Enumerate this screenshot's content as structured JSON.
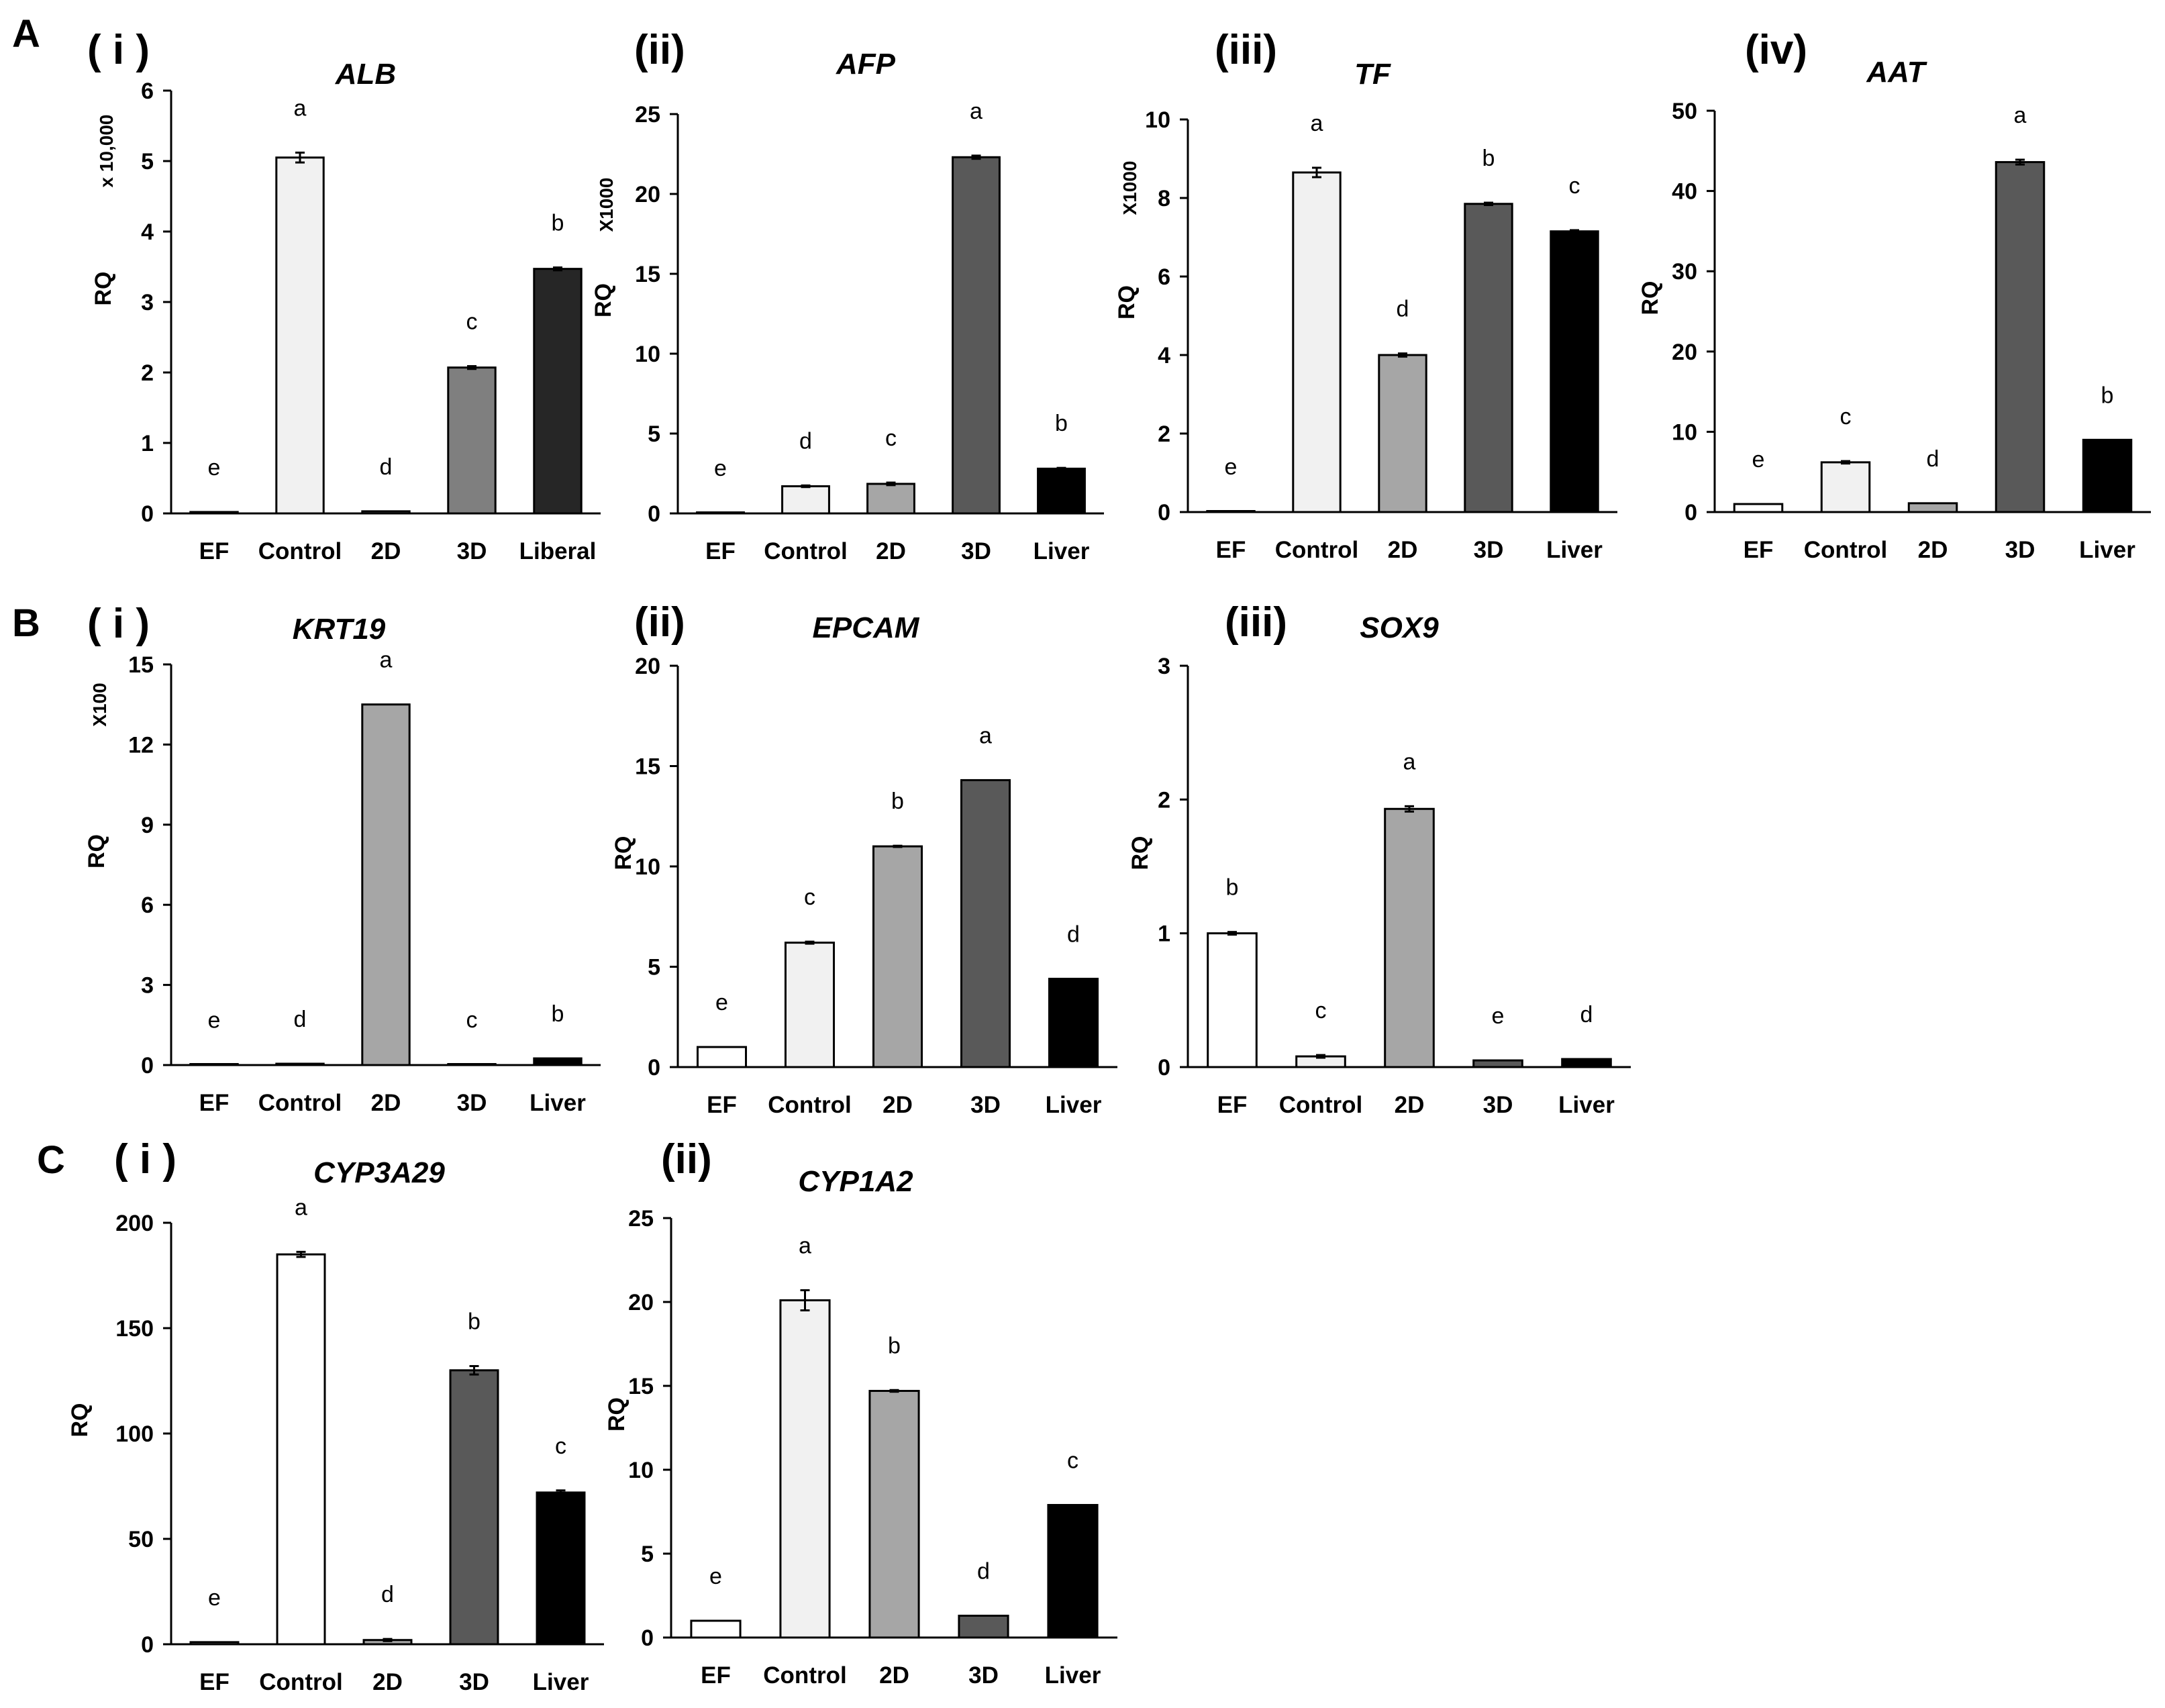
{
  "figure": {
    "panel_labels": [
      "A",
      "B",
      "C"
    ]
  },
  "chart_data": [
    {
      "type": "bar",
      "panel": "A",
      "roman": "( i )",
      "title": "ALB",
      "categories": [
        "EF",
        "Control",
        "2D",
        "3D",
        "Liberal"
      ],
      "values": [
        0.02,
        5.05,
        0.03,
        2.07,
        3.47
      ],
      "errors": [
        0,
        0.07,
        0,
        0.02,
        0.02
      ],
      "letters": [
        "e",
        "a",
        "d",
        "c",
        "b"
      ],
      "colors": [
        "#ffffff",
        "#f1f1f1",
        "#a6a6a6",
        "#7f7f7f",
        "#262626"
      ],
      "ylabel": "RQ",
      "multiplier": "x 10,000",
      "ylim": [
        0,
        6
      ],
      "yticks": [
        0,
        1,
        2,
        3,
        4,
        5,
        6
      ],
      "tick_labels": [
        "0",
        "1",
        "2",
        "3",
        "4",
        "5",
        "6"
      ]
    },
    {
      "type": "bar",
      "panel": "A",
      "roman": "(ii)",
      "title": "AFP",
      "categories": [
        "EF",
        "Control",
        "2D",
        "3D",
        "Liver"
      ],
      "values": [
        0.05,
        1.7,
        1.85,
        22.3,
        2.8
      ],
      "errors": [
        0,
        0.05,
        0.08,
        0.1,
        0.05
      ],
      "letters": [
        "e",
        "d",
        "c",
        "a",
        "b"
      ],
      "colors": [
        "#ffffff",
        "#f1f1f1",
        "#a6a6a6",
        "#595959",
        "#000000"
      ],
      "ylabel": "RQ",
      "multiplier": "X1000",
      "ylim": [
        0,
        25
      ],
      "yticks": [
        0,
        5,
        10,
        15,
        20,
        25
      ],
      "tick_labels": [
        "0",
        "5",
        "10",
        "15",
        "20",
        "25"
      ]
    },
    {
      "type": "bar",
      "panel": "A",
      "roman": "(iii)",
      "title": "TF",
      "categories": [
        "EF",
        "Control",
        "2D",
        "3D",
        "Liver"
      ],
      "values": [
        0.02,
        8.65,
        4.0,
        7.85,
        7.15
      ],
      "errors": [
        0,
        0.12,
        0.04,
        0.03,
        0.03
      ],
      "letters": [
        "e",
        "a",
        "d",
        "b",
        "c"
      ],
      "colors": [
        "#ffffff",
        "#f1f1f1",
        "#a6a6a6",
        "#595959",
        "#000000"
      ],
      "ylabel": "RQ",
      "multiplier": "X1000",
      "ylim": [
        0,
        10
      ],
      "yticks": [
        0,
        2,
        4,
        6,
        8,
        10
      ],
      "tick_labels": [
        "0",
        "2",
        "4",
        "6",
        "8",
        "10"
      ]
    },
    {
      "type": "bar",
      "panel": "A",
      "roman": "(iv)",
      "title": "AAT",
      "categories": [
        "EF",
        "Control",
        "2D",
        "3D",
        "Liver"
      ],
      "values": [
        1.0,
        6.2,
        1.1,
        43.6,
        9.0
      ],
      "errors": [
        0,
        0.15,
        0,
        0.3,
        0
      ],
      "letters": [
        "e",
        "c",
        "d",
        "a",
        "b"
      ],
      "colors": [
        "#ffffff",
        "#f1f1f1",
        "#a6a6a6",
        "#595959",
        "#000000"
      ],
      "ylabel": "RQ",
      "multiplier": "",
      "ylim": [
        0,
        50
      ],
      "yticks": [
        0,
        10,
        20,
        30,
        40,
        50
      ],
      "tick_labels": [
        "0",
        "10",
        "20",
        "30",
        "40",
        "50"
      ]
    },
    {
      "type": "bar",
      "panel": "B",
      "roman": "( i )",
      "title": "KRT19",
      "categories": [
        "EF",
        "Control",
        "2D",
        "3D",
        "Liver"
      ],
      "values": [
        0.01,
        0.05,
        13.5,
        0.03,
        0.25
      ],
      "errors": [
        0,
        0,
        0,
        0,
        0
      ],
      "letters": [
        "e",
        "d",
        "a",
        "c",
        "b"
      ],
      "colors": [
        "#ffffff",
        "#f1f1f1",
        "#a6a6a6",
        "#595959",
        "#000000"
      ],
      "ylabel": "RQ",
      "multiplier": "X100",
      "ylim": [
        0,
        15
      ],
      "yticks": [
        0,
        3,
        6,
        9,
        12,
        15
      ],
      "tick_labels": [
        "0",
        "3",
        "6",
        "9",
        "12",
        "15"
      ]
    },
    {
      "type": "bar",
      "panel": "B",
      "roman": "(ii)",
      "title": "EPCAM",
      "categories": [
        "EF",
        "Control",
        "2D",
        "3D",
        "Liver"
      ],
      "values": [
        1.0,
        6.2,
        11.0,
        14.3,
        4.4
      ],
      "errors": [
        0,
        0.05,
        0.03,
        0,
        0
      ],
      "letters": [
        "e",
        "c",
        "b",
        "a",
        "d"
      ],
      "colors": [
        "#ffffff",
        "#f1f1f1",
        "#a6a6a6",
        "#595959",
        "#000000"
      ],
      "ylabel": "RQ",
      "multiplier": "",
      "ylim": [
        0,
        20
      ],
      "yticks": [
        0,
        5,
        10,
        15,
        20
      ],
      "tick_labels": [
        "0",
        "5",
        "10",
        "15",
        "20"
      ]
    },
    {
      "type": "bar",
      "panel": "B",
      "roman": "(iii)",
      "title": "SOX9",
      "categories": [
        "EF",
        "Control",
        "2D",
        "3D",
        "Liver"
      ],
      "values": [
        1.0,
        0.08,
        1.93,
        0.05,
        0.06
      ],
      "errors": [
        0.01,
        0.01,
        0.02,
        0,
        0
      ],
      "letters": [
        "b",
        "c",
        "a",
        "e",
        "d"
      ],
      "colors": [
        "#ffffff",
        "#f1f1f1",
        "#a6a6a6",
        "#595959",
        "#000000"
      ],
      "ylabel": "RQ",
      "multiplier": "",
      "ylim": [
        0,
        3
      ],
      "yticks": [
        0,
        1,
        2,
        3
      ],
      "tick_labels": [
        "0",
        "1",
        "2",
        "3"
      ]
    },
    {
      "type": "bar",
      "panel": "C",
      "roman": "( i )",
      "title": "CYP3A29",
      "categories": [
        "EF",
        "Control",
        "2D",
        "3D",
        "Liver"
      ],
      "values": [
        1.0,
        185.0,
        2.0,
        130.0,
        72.0
      ],
      "errors": [
        0,
        1.2,
        0.5,
        2.0,
        1.0
      ],
      "letters": [
        "e",
        "a",
        "d",
        "b",
        "c"
      ],
      "colors": [
        "#ffffff",
        "#ffffff",
        "#a6a6a6",
        "#595959",
        "#000000"
      ],
      "ylabel": "RQ",
      "multiplier": "",
      "ylim": [
        0,
        200
      ],
      "yticks": [
        0,
        50,
        100,
        150,
        200
      ],
      "tick_labels": [
        "0",
        "50",
        "100",
        "150",
        "200"
      ]
    },
    {
      "type": "bar",
      "panel": "C",
      "roman": "(ii)",
      "title": "CYP1A2",
      "categories": [
        "EF",
        "Control",
        "2D",
        "3D",
        "Liver"
      ],
      "values": [
        1.0,
        20.1,
        14.7,
        1.3,
        7.9
      ],
      "errors": [
        0,
        0.6,
        0.05,
        0,
        0
      ],
      "letters": [
        "e",
        "a",
        "b",
        "d",
        "c"
      ],
      "colors": [
        "#ffffff",
        "#f1f1f1",
        "#a6a6a6",
        "#595959",
        "#000000"
      ],
      "ylabel": "RQ",
      "multiplier": "",
      "ylim": [
        0,
        25
      ],
      "yticks": [
        0,
        5,
        10,
        15,
        20,
        25
      ],
      "tick_labels": [
        "0",
        "5",
        "10",
        "15",
        "20",
        "25"
      ]
    }
  ]
}
